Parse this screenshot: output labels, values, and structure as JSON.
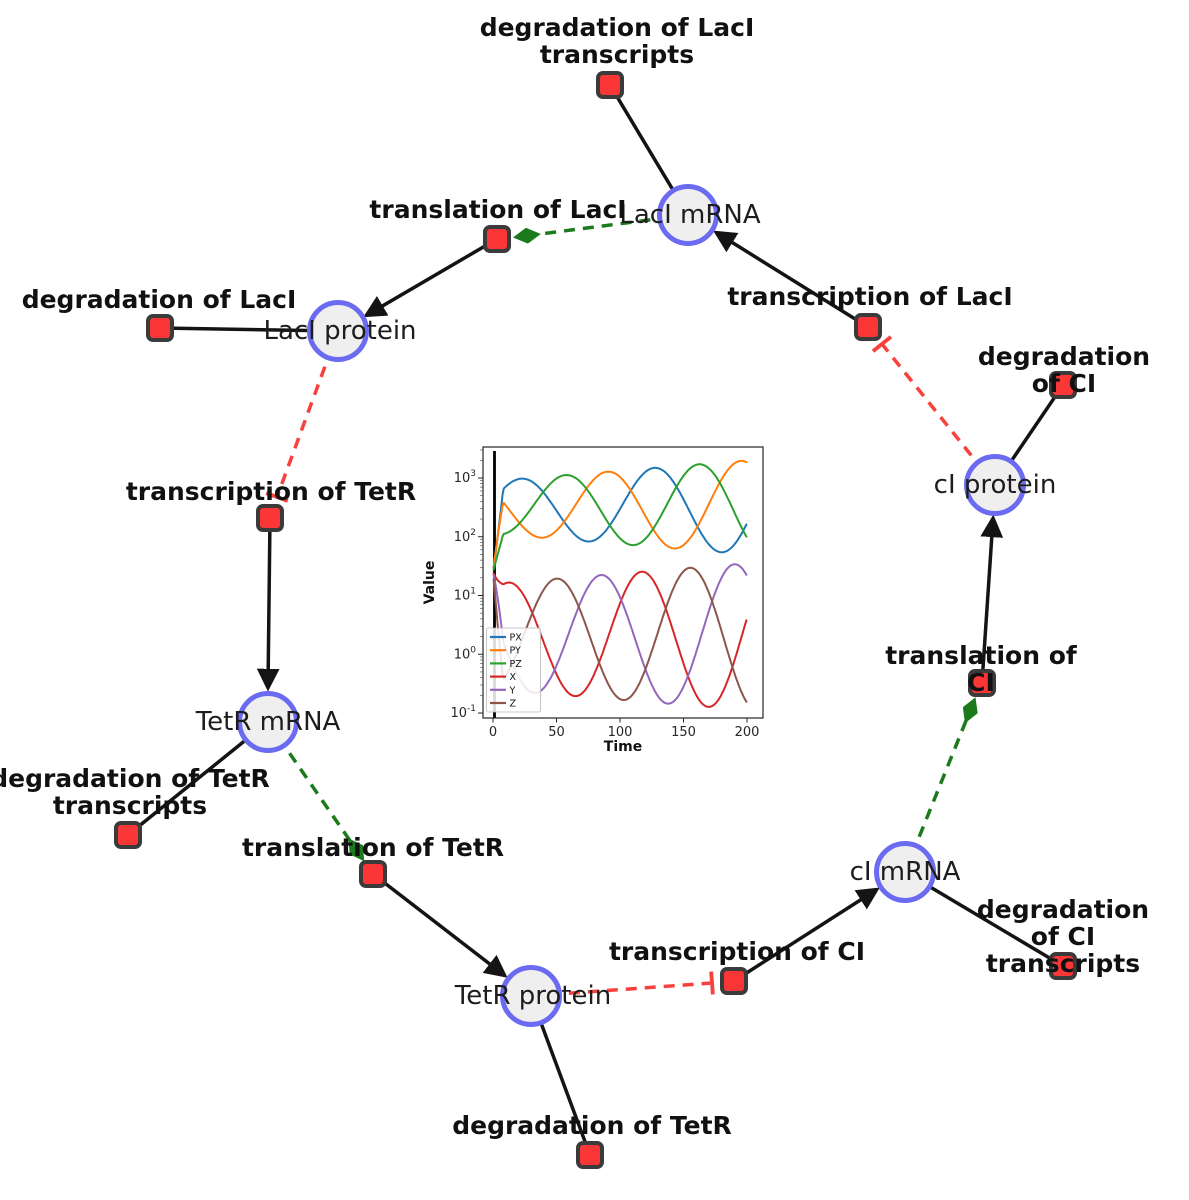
{
  "figure": {
    "background": "#ffffff"
  },
  "diagram": {
    "colors": {
      "species_fill": "#efefef",
      "species_border": "#6b6bf2",
      "reaction_fill": "#fa3636",
      "reaction_border": "#3b3b3b",
      "edge_black": "#141414",
      "edge_activation_green": "#1b7a1b",
      "edge_inhibition_red": "#f8403d"
    },
    "species": [
      {
        "label": "LacI mRNA"
      },
      {
        "label": "LacI protein"
      },
      {
        "label": "TetR mRNA"
      },
      {
        "label": "TetR protein"
      },
      {
        "label": "cI mRNA"
      },
      {
        "label": "cI protein"
      }
    ],
    "reactions": [
      {
        "label": "degradation of LacI\ntranscripts"
      },
      {
        "label": "translation of LacI"
      },
      {
        "label": "degradation of LacI"
      },
      {
        "label": "transcription of LacI"
      },
      {
        "label": "degradation of CI"
      },
      {
        "label": "transcription of TetR"
      },
      {
        "label": "degradation of TetR\ntranscripts"
      },
      {
        "label": "translation of TetR"
      },
      {
        "label": "translation of CI"
      },
      {
        "label": "transcription of CI"
      },
      {
        "label": "degradation of CI\ntranscripts"
      },
      {
        "label": "degradation of TetR"
      }
    ],
    "edges": [
      {
        "from": "LacI mRNA",
        "to": "degradation of LacI transcripts",
        "type": "consumption"
      },
      {
        "from": "LacI mRNA",
        "to": "translation of LacI",
        "type": "activation"
      },
      {
        "from": "translation of LacI",
        "to": "LacI protein",
        "type": "production"
      },
      {
        "from": "LacI protein",
        "to": "degradation of LacI",
        "type": "consumption"
      },
      {
        "from": "LacI protein",
        "to": "transcription of TetR",
        "type": "inhibition"
      },
      {
        "from": "transcription of TetR",
        "to": "TetR mRNA",
        "type": "production"
      },
      {
        "from": "TetR mRNA",
        "to": "degradation of TetR transcripts",
        "type": "consumption"
      },
      {
        "from": "TetR mRNA",
        "to": "translation of TetR",
        "type": "activation"
      },
      {
        "from": "translation of TetR",
        "to": "TetR protein",
        "type": "production"
      },
      {
        "from": "TetR protein",
        "to": "degradation of TetR",
        "type": "consumption"
      },
      {
        "from": "TetR protein",
        "to": "transcription of CI",
        "type": "inhibition"
      },
      {
        "from": "transcription of CI",
        "to": "cI mRNA",
        "type": "production"
      },
      {
        "from": "cI mRNA",
        "to": "degradation of CI transcripts",
        "type": "consumption"
      },
      {
        "from": "cI mRNA",
        "to": "translation of CI",
        "type": "activation"
      },
      {
        "from": "translation of CI",
        "to": "cI protein",
        "type": "production"
      },
      {
        "from": "cI protein",
        "to": "degradation of CI",
        "type": "consumption"
      },
      {
        "from": "cI protein",
        "to": "transcription of LacI",
        "type": "inhibition"
      }
    ]
  },
  "chart_data": {
    "type": "line",
    "title": "",
    "xlabel": "Time",
    "ylabel": "Value",
    "x_range": [
      0,
      200
    ],
    "xticks": [
      0,
      50,
      100,
      150,
      200
    ],
    "y_scale": "log",
    "ytick_exponents": [
      -1,
      0,
      1,
      2,
      3
    ],
    "ylim": [
      0.08,
      3000
    ],
    "grid": false,
    "legend_position": "lower left",
    "vline_x": 0,
    "model": {
      "period": 105,
      "init_log": 1.4,
      "init_blend_t": 8
    },
    "series": [
      {
        "name": "PX",
        "color": "#1f77b4",
        "log_mid": 2.5,
        "amp_start": 0.45,
        "amp_end": 0.8,
        "peak_time": 127
      },
      {
        "name": "PY",
        "color": "#ff7f0e",
        "log_mid": 2.5,
        "amp_start": 0.45,
        "amp_end": 0.8,
        "peak_time": 195
      },
      {
        "name": "PZ",
        "color": "#2ca02c",
        "log_mid": 2.5,
        "amp_start": 0.45,
        "amp_end": 0.8,
        "peak_time": 162
      },
      {
        "name": "X",
        "color": "#d62728",
        "log_mid": 0.3,
        "amp_start": 0.9,
        "amp_end": 1.25,
        "peak_time": 117
      },
      {
        "name": "Y",
        "color": "#9467bd",
        "log_mid": 0.3,
        "amp_start": 0.9,
        "amp_end": 1.25,
        "peak_time": 190
      },
      {
        "name": "Z",
        "color": "#8c564b",
        "log_mid": 0.3,
        "amp_start": 0.9,
        "amp_end": 1.25,
        "peak_time": 155
      }
    ]
  }
}
